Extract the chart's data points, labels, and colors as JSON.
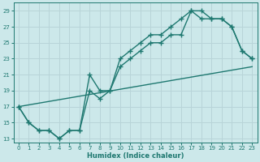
{
  "xlabel": "Humidex (Indice chaleur)",
  "bg_color": "#cce8ea",
  "grid_color": "#b8d4d8",
  "line_color": "#1e7870",
  "xlim": [
    -0.5,
    23.5
  ],
  "ylim": [
    12.5,
    30
  ],
  "xticks": [
    0,
    1,
    2,
    3,
    4,
    5,
    6,
    7,
    8,
    9,
    10,
    11,
    12,
    13,
    14,
    15,
    16,
    17,
    18,
    19,
    20,
    21,
    22,
    23
  ],
  "yticks": [
    13,
    15,
    17,
    19,
    21,
    23,
    25,
    27,
    29
  ],
  "line1_x": [
    0,
    1,
    2,
    3,
    4,
    5,
    6,
    7,
    8,
    9,
    10,
    11,
    12,
    13,
    14,
    15,
    16,
    17,
    18,
    19,
    20,
    21,
    22,
    23
  ],
  "line1_y": [
    17,
    15,
    14,
    14,
    13,
    14,
    14,
    21,
    19,
    19,
    23,
    24,
    25,
    26,
    26,
    27,
    28,
    29,
    29,
    28,
    28,
    27,
    24,
    23
  ],
  "line2_x": [
    0,
    1,
    2,
    3,
    4,
    5,
    6,
    7,
    8,
    9,
    10,
    11,
    12,
    13,
    14,
    15,
    16,
    17,
    18,
    19,
    20,
    21,
    22,
    23
  ],
  "line2_y": [
    17,
    15,
    14,
    14,
    13,
    14,
    14,
    19,
    18,
    19,
    22,
    23,
    24,
    25,
    25,
    26,
    26,
    29,
    28,
    28,
    28,
    27,
    24,
    23
  ],
  "line3_x": [
    0,
    23
  ],
  "line3_y": [
    17,
    22
  ]
}
